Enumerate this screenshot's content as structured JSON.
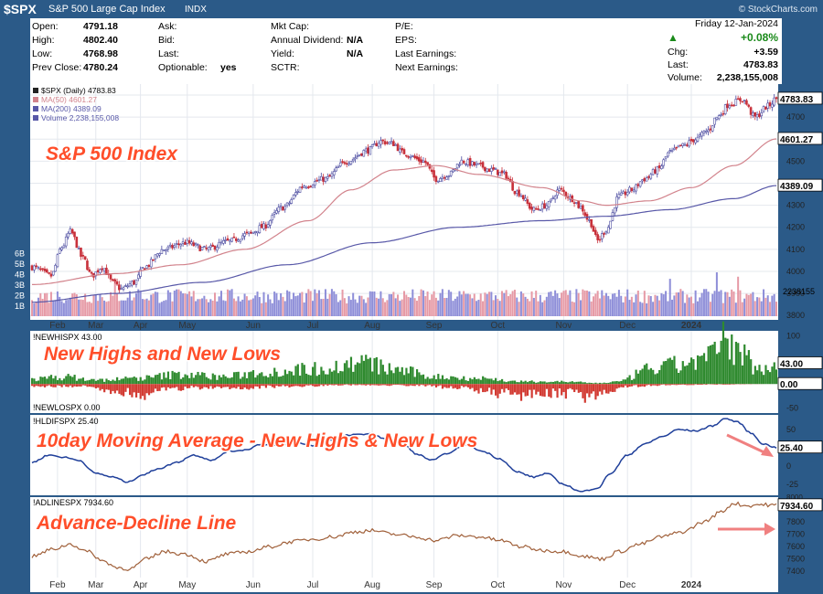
{
  "header": {
    "symbol": "$SPX",
    "name": "S&P 500 Large Cap Index",
    "exchange": "INDX",
    "brand": "© StockCharts.com"
  },
  "quote": {
    "date": "Friday  12-Jan-2024",
    "left": [
      {
        "label": "Open:",
        "value": "4791.18"
      },
      {
        "label": "High:",
        "value": "4802.40"
      },
      {
        "label": "Low:",
        "value": "4768.98"
      },
      {
        "label": "Prev Close:",
        "value": "4780.24"
      }
    ],
    "mid1": [
      {
        "label": "Ask:",
        "value": ""
      },
      {
        "label": "Bid:",
        "value": ""
      },
      {
        "label": "Last:",
        "value": ""
      },
      {
        "label": "Optionable:",
        "value": "yes"
      }
    ],
    "mid2": [
      {
        "label": "Mkt Cap:",
        "value": ""
      },
      {
        "label": "Annual Dividend:",
        "value": "N/A"
      },
      {
        "label": "Yield:",
        "value": "N/A"
      },
      {
        "label": "SCTR:",
        "value": ""
      }
    ],
    "mid3": [
      {
        "label": "P/E:",
        "value": ""
      },
      {
        "label": "EPS:",
        "value": ""
      },
      {
        "label": "Last Earnings:",
        "value": ""
      },
      {
        "label": "Next Earnings:",
        "value": ""
      }
    ],
    "pct_change": "+0.08%",
    "chg_label": "Chg:",
    "chg_value": "+3.59",
    "last_label": "Last:",
    "last_value": "4783.83",
    "volume_label": "Volume:",
    "volume_value": "2,238,155,008",
    "up_color": "#1a8a1a"
  },
  "axis_months": [
    "Feb",
    "Mar",
    "Apr",
    "May",
    "Jun",
    "Jul",
    "Aug",
    "Sep",
    "Oct",
    "Nov",
    "Dec",
    "2024"
  ],
  "chart_data": [
    {
      "type": "candlestick",
      "panel": "price",
      "legend": [
        "$SPX (Daily) 4783.83",
        "MA(50) 4601.27",
        "MA(200) 4389.09",
        "Volume 2,238,155,008"
      ],
      "annotation": "S&P 500 Index",
      "ylim": [
        3780,
        4850
      ],
      "y_ticks": [
        3800,
        3900,
        4000,
        4100,
        4200,
        4300,
        4400,
        4500,
        4600,
        4700,
        4800
      ],
      "volume_ticks": [
        "1B",
        "2B",
        "3B",
        "4B",
        "5B",
        "6B"
      ],
      "last_labels": {
        "price": "4783.83",
        "ma50": "4601.27",
        "ma200": "4389.09",
        "volume": "2238155"
      },
      "anchors": [
        [
          0,
          4020
        ],
        [
          9,
          3980
        ],
        [
          14,
          4110
        ],
        [
          18,
          4180
        ],
        [
          24,
          4060
        ],
        [
          28,
          3980
        ],
        [
          33,
          4020
        ],
        [
          38,
          3950
        ],
        [
          42,
          3920
        ],
        [
          48,
          3950
        ],
        [
          53,
          4020
        ],
        [
          62,
          4100
        ],
        [
          72,
          4130
        ],
        [
          82,
          4100
        ],
        [
          92,
          4135
        ],
        [
          102,
          4170
        ],
        [
          108,
          4200
        ],
        [
          118,
          4290
        ],
        [
          128,
          4390
        ],
        [
          138,
          4420
        ],
        [
          148,
          4500
        ],
        [
          158,
          4550
        ],
        [
          164,
          4590
        ],
        [
          170,
          4580
        ],
        [
          174,
          4540
        ],
        [
          184,
          4500
        ],
        [
          190,
          4420
        ],
        [
          196,
          4440
        ],
        [
          202,
          4500
        ],
        [
          210,
          4480
        ],
        [
          216,
          4460
        ],
        [
          222,
          4440
        ],
        [
          228,
          4360
        ],
        [
          236,
          4280
        ],
        [
          242,
          4300
        ],
        [
          248,
          4370
        ],
        [
          254,
          4330
        ],
        [
          258,
          4290
        ],
        [
          262,
          4230
        ],
        [
          266,
          4140
        ],
        [
          270,
          4190
        ],
        [
          276,
          4340
        ],
        [
          282,
          4370
        ],
        [
          288,
          4420
        ],
        [
          294,
          4460
        ],
        [
          300,
          4540
        ],
        [
          306,
          4570
        ],
        [
          312,
          4600
        ],
        [
          318,
          4640
        ],
        [
          322,
          4700
        ],
        [
          328,
          4760
        ],
        [
          334,
          4780
        ],
        [
          340,
          4700
        ],
        [
          346,
          4750
        ],
        [
          350,
          4783.83
        ]
      ],
      "ma50_anchors": [
        [
          0,
          3940
        ],
        [
          40,
          3990
        ],
        [
          70,
          4030
        ],
        [
          100,
          4100
        ],
        [
          130,
          4230
        ],
        [
          150,
          4370
        ],
        [
          170,
          4460
        ],
        [
          190,
          4480
        ],
        [
          210,
          4440
        ],
        [
          240,
          4380
        ],
        [
          258,
          4320
        ],
        [
          270,
          4300
        ],
        [
          290,
          4320
        ],
        [
          310,
          4380
        ],
        [
          330,
          4480
        ],
        [
          350,
          4601.27
        ]
      ],
      "ma200_anchors": [
        [
          0,
          3860
        ],
        [
          40,
          3900
        ],
        [
          80,
          3950
        ],
        [
          120,
          4030
        ],
        [
          160,
          4130
        ],
        [
          200,
          4200
        ],
        [
          240,
          4230
        ],
        [
          270,
          4250
        ],
        [
          300,
          4280
        ],
        [
          330,
          4330
        ],
        [
          350,
          4389.09
        ]
      ]
    },
    {
      "type": "bar",
      "panel": "nhnl",
      "legend_top": "!NEWHISPX 43.00",
      "legend_bottom": "!NEWLOSPX 0.00",
      "annotation": "New Highs and New Lows",
      "ylim": [
        -60,
        110
      ],
      "y_ticks": [
        100,
        50,
        0,
        -50
      ],
      "last_labels": {
        "hi": "43.00",
        "lo": "0.00"
      },
      "hi_anchors": [
        [
          0,
          10
        ],
        [
          15,
          15
        ],
        [
          30,
          8
        ],
        [
          50,
          12
        ],
        [
          70,
          20
        ],
        [
          90,
          15
        ],
        [
          110,
          25
        ],
        [
          128,
          30
        ],
        [
          142,
          35
        ],
        [
          155,
          45
        ],
        [
          170,
          30
        ],
        [
          190,
          15
        ],
        [
          210,
          12
        ],
        [
          230,
          5
        ],
        [
          250,
          5
        ],
        [
          266,
          2
        ],
        [
          276,
          5
        ],
        [
          290,
          30
        ],
        [
          305,
          40
        ],
        [
          318,
          55
        ],
        [
          326,
          90
        ],
        [
          334,
          60
        ],
        [
          342,
          30
        ],
        [
          350,
          43
        ]
      ],
      "lo_anchors": [
        [
          0,
          5
        ],
        [
          20,
          5
        ],
        [
          40,
          15
        ],
        [
          50,
          25
        ],
        [
          60,
          12
        ],
        [
          80,
          8
        ],
        [
          100,
          8
        ],
        [
          120,
          5
        ],
        [
          150,
          2
        ],
        [
          180,
          3
        ],
        [
          200,
          8
        ],
        [
          220,
          20
        ],
        [
          235,
          25
        ],
        [
          250,
          20
        ],
        [
          262,
          28
        ],
        [
          270,
          15
        ],
        [
          280,
          5
        ],
        [
          300,
          2
        ],
        [
          320,
          1
        ],
        [
          350,
          0
        ]
      ]
    },
    {
      "type": "line",
      "panel": "ma10",
      "legend": "!HLDIFSPX 25.40",
      "annotation": "10day Moving Average - New Highs & New Lows",
      "ylim": [
        -40,
        70
      ],
      "y_ticks": [
        50,
        25,
        0,
        -25
      ],
      "last_label": "25.40",
      "anchors": [
        [
          0,
          5
        ],
        [
          8,
          15
        ],
        [
          15,
          12
        ],
        [
          22,
          8
        ],
        [
          30,
          -10
        ],
        [
          38,
          -15
        ],
        [
          45,
          -22
        ],
        [
          52,
          -12
        ],
        [
          60,
          -3
        ],
        [
          68,
          5
        ],
        [
          76,
          15
        ],
        [
          85,
          8
        ],
        [
          92,
          20
        ],
        [
          100,
          22
        ],
        [
          108,
          30
        ],
        [
          116,
          28
        ],
        [
          124,
          32
        ],
        [
          132,
          28
        ],
        [
          140,
          36
        ],
        [
          148,
          42
        ],
        [
          158,
          44
        ],
        [
          166,
          38
        ],
        [
          174,
          30
        ],
        [
          182,
          15
        ],
        [
          188,
          8
        ],
        [
          196,
          18
        ],
        [
          204,
          30
        ],
        [
          212,
          20
        ],
        [
          220,
          10
        ],
        [
          228,
          -8
        ],
        [
          236,
          -15
        ],
        [
          242,
          -10
        ],
        [
          250,
          -25
        ],
        [
          258,
          -35
        ],
        [
          266,
          -30
        ],
        [
          272,
          -10
        ],
        [
          280,
          15
        ],
        [
          288,
          30
        ],
        [
          296,
          40
        ],
        [
          304,
          50
        ],
        [
          312,
          48
        ],
        [
          320,
          55
        ],
        [
          326,
          65
        ],
        [
          332,
          60
        ],
        [
          338,
          45
        ],
        [
          344,
          30
        ],
        [
          350,
          25.4
        ]
      ]
    },
    {
      "type": "line",
      "panel": "adline",
      "legend": "!ADLINESPX 7934.60",
      "annotation": "Advance-Decline Line",
      "ylim": [
        7350,
        8000
      ],
      "y_ticks": [
        7800,
        7700,
        7600,
        7500,
        7400
      ],
      "last_label": "7934.60",
      "top_tick": "8000",
      "anchors": [
        [
          0,
          7520
        ],
        [
          10,
          7580
        ],
        [
          18,
          7620
        ],
        [
          26,
          7560
        ],
        [
          34,
          7480
        ],
        [
          40,
          7430
        ],
        [
          46,
          7420
        ],
        [
          54,
          7500
        ],
        [
          62,
          7560
        ],
        [
          72,
          7540
        ],
        [
          82,
          7480
        ],
        [
          92,
          7540
        ],
        [
          102,
          7560
        ],
        [
          112,
          7600
        ],
        [
          122,
          7640
        ],
        [
          132,
          7660
        ],
        [
          142,
          7680
        ],
        [
          152,
          7720
        ],
        [
          160,
          7730
        ],
        [
          170,
          7700
        ],
        [
          180,
          7680
        ],
        [
          190,
          7650
        ],
        [
          200,
          7690
        ],
        [
          210,
          7680
        ],
        [
          220,
          7650
        ],
        [
          230,
          7600
        ],
        [
          240,
          7570
        ],
        [
          250,
          7560
        ],
        [
          260,
          7520
        ],
        [
          268,
          7500
        ],
        [
          276,
          7560
        ],
        [
          286,
          7620
        ],
        [
          296,
          7680
        ],
        [
          306,
          7720
        ],
        [
          316,
          7800
        ],
        [
          324,
          7880
        ],
        [
          330,
          7950
        ],
        [
          336,
          7930
        ],
        [
          342,
          7940
        ],
        [
          350,
          7934.6
        ]
      ]
    }
  ],
  "colors": {
    "up": "#4b4ba0",
    "down": "#c8303a",
    "ma50": "#d2838c",
    "ma200": "#5858a8",
    "vol_up": "#8e8ed8",
    "vol_down": "#e69aa6",
    "nh": "#2f8a2f",
    "nl": "#d23a32",
    "ma10": "#1f3f9a",
    "ad": "#a0603a",
    "annotation": "#ff4e2a",
    "arrow": "#f08080"
  }
}
